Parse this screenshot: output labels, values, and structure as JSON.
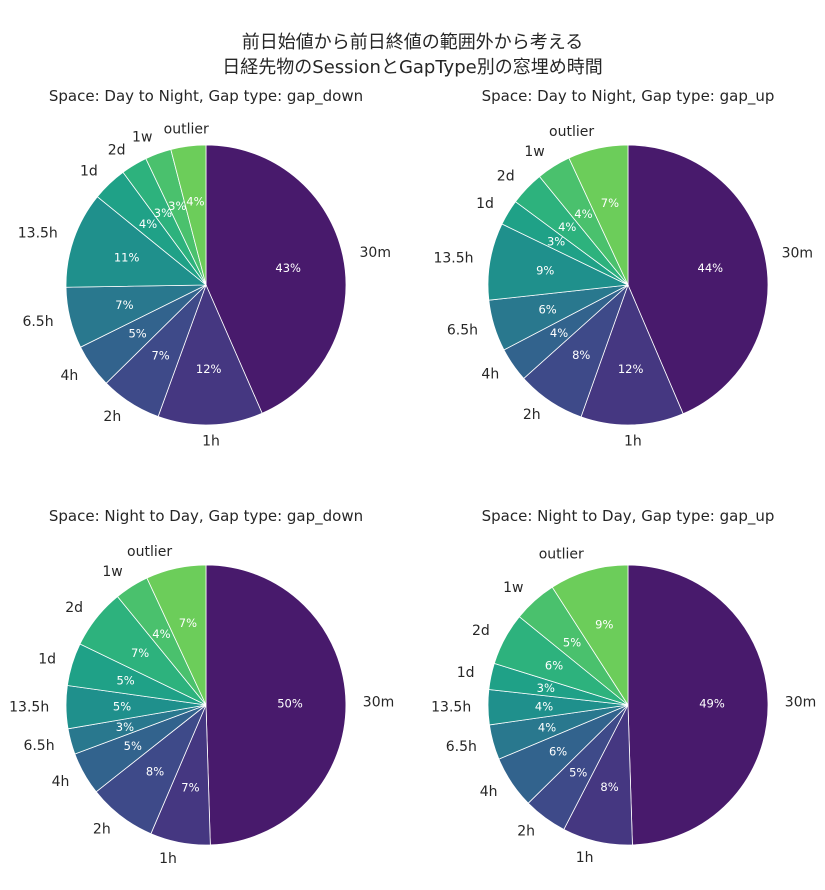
{
  "title_line1": "前日始値から前日終値の範囲外から考える",
  "title_line2": "日経先物のSessionとGapType別の窓埋め時間",
  "chart_data": [
    {
      "type": "pie",
      "title": "Space: Day to Night,  Gap type: gap_down",
      "start_angle": "12 o'clock",
      "direction": "clockwise",
      "categories": [
        "30m",
        "1h",
        "2h",
        "4h",
        "6.5h",
        "13.5h",
        "1d",
        "2d",
        "1w",
        "outlier"
      ],
      "values": [
        43,
        12,
        7,
        5,
        7,
        11,
        4,
        3,
        3,
        4
      ],
      "labels": [
        "43%",
        "12%",
        "7%",
        "5%",
        "7%",
        "11%",
        "4%",
        "3%",
        "3%",
        "4%"
      ]
    },
    {
      "type": "pie",
      "title": "Space: Day to Night,  Gap type: gap_up",
      "start_angle": "12 o'clock",
      "direction": "clockwise",
      "categories": [
        "30m",
        "1h",
        "2h",
        "4h",
        "6.5h",
        "13.5h",
        "1d",
        "2d",
        "1w",
        "outlier"
      ],
      "values": [
        44,
        12,
        8,
        4,
        6,
        9,
        3,
        4,
        4,
        7
      ],
      "labels": [
        "44%",
        "12%",
        "8%",
        "4%",
        "6%",
        "9%",
        "3%",
        "4%",
        "4%",
        "7%"
      ]
    },
    {
      "type": "pie",
      "title": "Space: Night to Day,  Gap type: gap_down",
      "start_angle": "12 o'clock",
      "direction": "clockwise",
      "categories": [
        "30m",
        "1h",
        "2h",
        "4h",
        "6.5h",
        "13.5h",
        "1d",
        "2d",
        "1w",
        "outlier"
      ],
      "values": [
        50,
        7,
        8,
        5,
        3,
        5,
        5,
        7,
        4,
        7
      ],
      "labels": [
        "50%",
        "7%",
        "8%",
        "5%",
        "3%",
        "5%",
        "5%",
        "7%",
        "4%",
        "7%"
      ]
    },
    {
      "type": "pie",
      "title": "Space: Night to Day,  Gap type: gap_up",
      "start_angle": "12 o'clock",
      "direction": "clockwise",
      "categories": [
        "30m",
        "1h",
        "2h",
        "4h",
        "6.5h",
        "13.5h",
        "1d",
        "2d",
        "1w",
        "outlier"
      ],
      "values": [
        49,
        8,
        5,
        6,
        4,
        4,
        3,
        6,
        5,
        9
      ],
      "labels": [
        "49%",
        "8%",
        "5%",
        "6%",
        "4%",
        "4%",
        "3%",
        "6%",
        "5%",
        "9%"
      ]
    }
  ],
  "colors": [
    "#481a6c",
    "#453781",
    "#3e4a89",
    "#32638d",
    "#29788e",
    "#1f908c",
    "#1fa187",
    "#2db27d",
    "#4ac16d",
    "#6ccd5a"
  ]
}
